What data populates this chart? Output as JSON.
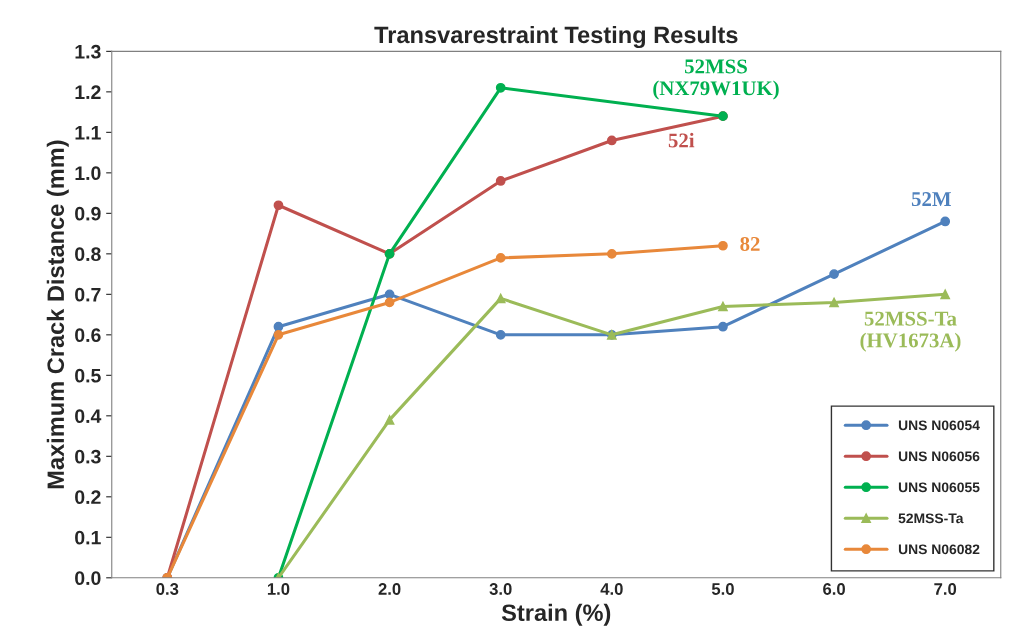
{
  "chart_data": {
    "type": "line",
    "title": "Transvarestraint Testing Results",
    "xlabel": "Strain (%)",
    "ylabel": "Maximum Crack Distance (mm)",
    "categories": [
      "0.3",
      "1.0",
      "2.0",
      "3.0",
      "4.0",
      "5.0",
      "6.0",
      "7.0"
    ],
    "series": [
      {
        "name": "UNS N06054",
        "color": "#4f81bd",
        "marker": "circle",
        "values": [
          0,
          0.62,
          0.7,
          0.6,
          0.6,
          0.62,
          0.75,
          0.88
        ]
      },
      {
        "name": "UNS N06056",
        "color": "#c0504d",
        "marker": "circle",
        "values": [
          0,
          0.92,
          0.8,
          0.98,
          1.08,
          1.14,
          null,
          null
        ]
      },
      {
        "name": "UNS N06055",
        "color": "#00b050",
        "marker": "circle",
        "x": [
          "1.0",
          "2.0",
          "3.0",
          "5.0"
        ],
        "values": [
          0,
          0.8,
          1.21,
          1.14
        ]
      },
      {
        "name": "52MSS-Ta",
        "color": "#9bbb59",
        "marker": "triangle",
        "x": [
          "1.0",
          "2.0",
          "3.0",
          "4.0",
          "5.0",
          "6.0",
          "7.0"
        ],
        "values": [
          0,
          0.39,
          0.69,
          0.6,
          0.67,
          0.68,
          0.7
        ]
      },
      {
        "name": "UNS N06082",
        "color": "#e8883a",
        "marker": "circle",
        "values": [
          0,
          0.6,
          0.68,
          0.79,
          0.8,
          0.82,
          null,
          null
        ]
      }
    ],
    "ylim": [
      0,
      1.3
    ],
    "yticks": [
      {
        "value": 0,
        "label": "0.0"
      },
      0.1,
      0.2,
      0.3,
      0.4,
      0.5,
      0.6,
      0.7,
      0.8,
      0.9,
      {
        "value": 1,
        "label": "1.0"
      },
      1.1,
      1.2,
      1.3
    ],
    "legend": "bottom right",
    "grid": false,
    "annotations": [
      {
        "text": "52MSS\n(NX79W1UK)",
        "x": "5.0",
        "y": 1.14
      },
      {
        "text": "52i",
        "x": "5.0",
        "y": 1.14
      },
      {
        "text": "52M",
        "x": "7.0",
        "y": 0.88
      },
      {
        "text": "82",
        "x": "5.0",
        "y": 0.82
      },
      {
        "text": "52MSS-Ta\n(HV1673A)",
        "x": "7.0",
        "y": 0.7
      }
    ]
  }
}
